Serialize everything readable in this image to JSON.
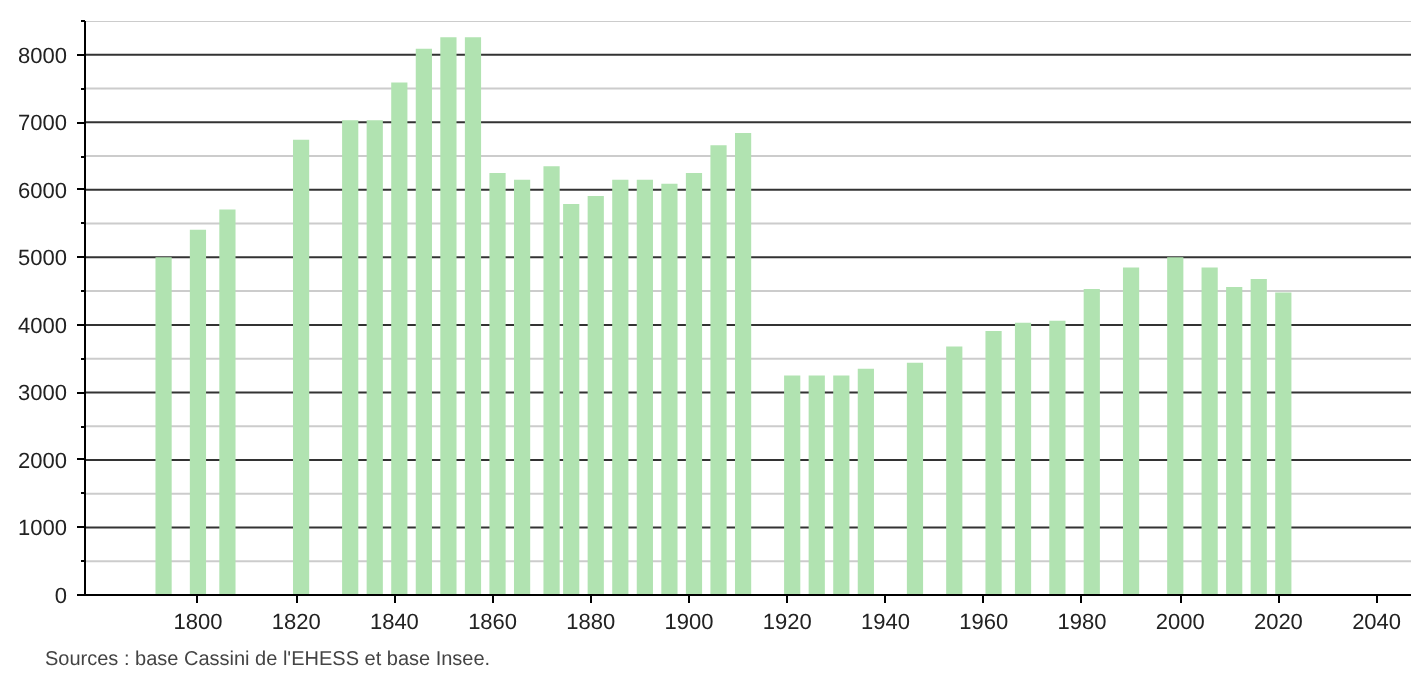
{
  "chart_data": {
    "type": "bar",
    "x": [
      1793,
      1800,
      1806,
      1821,
      1831,
      1836,
      1841,
      1846,
      1851,
      1856,
      1861,
      1866,
      1872,
      1876,
      1881,
      1886,
      1891,
      1896,
      1901,
      1906,
      1911,
      1921,
      1926,
      1931,
      1936,
      1946,
      1954,
      1962,
      1968,
      1975,
      1982,
      1990,
      1999,
      2006,
      2011,
      2016,
      2021
    ],
    "values": [
      5000,
      5410,
      5710,
      6740,
      7030,
      7030,
      7590,
      8090,
      8260,
      8260,
      6250,
      6150,
      6350,
      5790,
      5910,
      6150,
      6150,
      6090,
      6250,
      6660,
      6840,
      3250,
      3250,
      3250,
      3350,
      3440,
      3680,
      3910,
      4030,
      4060,
      4530,
      4850,
      5000,
      4850,
      4560,
      4680,
      4480
    ],
    "color": "#b1e3b1",
    "xlim": [
      1777,
      2047
    ],
    "xticks": [
      1800,
      1820,
      1840,
      1860,
      1880,
      1900,
      1920,
      1940,
      1960,
      1980,
      2000,
      2020,
      2040
    ],
    "ylim": [
      0,
      8500
    ],
    "yticks": [
      0,
      {
        "value": 500,
        "label": null
      },
      1000,
      {
        "value": 1500,
        "label": null
      },
      2000,
      {
        "value": 2500,
        "label": null
      },
      3000,
      {
        "value": 3500,
        "label": null
      },
      4000,
      {
        "value": 4500,
        "label": null
      },
      5000,
      {
        "value": 5500,
        "label": null
      },
      6000,
      {
        "value": 6500,
        "label": null
      },
      7000,
      {
        "value": 7500,
        "label": null
      },
      8000,
      {
        "value": 8500,
        "label": null
      }
    ],
    "grid": "y",
    "annotations": [
      "Sources : base Cassini de l'EHESS et base Insee."
    ]
  }
}
